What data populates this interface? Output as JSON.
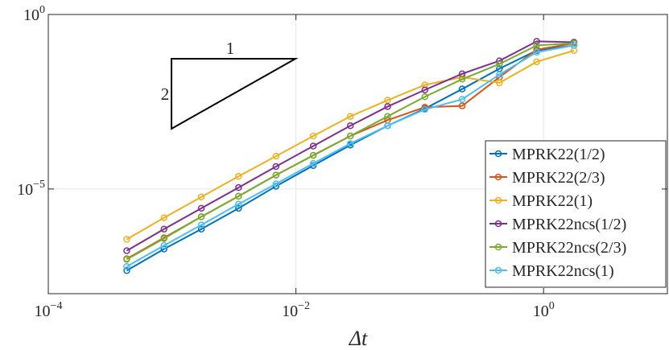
{
  "chart_data": {
    "type": "line",
    "xlabel": "Δt",
    "xscale": "log",
    "yscale": "log",
    "xlim": [
      0.0001,
      10
    ],
    "ylim": [
      1e-08,
      1
    ],
    "xticks": [
      {
        "value": 0.0001,
        "label": "10",
        "exponent": "−4"
      },
      {
        "value": 0.01,
        "label": "10",
        "exponent": "−2"
      },
      {
        "value": 1,
        "label": "10",
        "exponent": "0"
      }
    ],
    "yticks": [
      {
        "value": 1e-05,
        "label": "10",
        "exponent": "−5"
      },
      {
        "value": 1,
        "label": "10",
        "exponent": "0"
      }
    ],
    "grid": true,
    "legend": "southeast",
    "x": [
      0.00043,
      0.00086,
      0.00172,
      0.00344,
      0.0069,
      0.0138,
      0.0275,
      0.055,
      0.11,
      0.22,
      0.44,
      0.88,
      1.76
    ],
    "series": [
      {
        "name": "MPRK22(1/2)",
        "color": "#0072BD",
        "values": [
          4.6e-08,
          1.9e-07,
          7.1e-07,
          2.8e-06,
          1.2e-05,
          4.7e-05,
          0.00018,
          0.00065,
          0.002,
          0.0073,
          0.028,
          0.093,
          0.13
        ]
      },
      {
        "name": "MPRK22(2/3)",
        "color": "#D95319",
        "values": [
          1e-07,
          4e-07,
          1.6e-06,
          6.2e-06,
          2.5e-05,
          9.2e-05,
          0.00033,
          0.00094,
          0.0022,
          0.0024,
          0.016,
          0.098,
          0.15
        ]
      },
      {
        "name": "MPRK22(1)",
        "color": "#EDB120",
        "values": [
          3.6e-07,
          1.5e-06,
          5.9e-06,
          2.3e-05,
          8.7e-05,
          0.00033,
          0.0012,
          0.0035,
          0.0096,
          0.016,
          0.011,
          0.044,
          0.093
        ]
      },
      {
        "name": "MPRK22ncs(1/2)",
        "color": "#7E2F8E",
        "values": [
          1.7e-07,
          7.1e-07,
          2.8e-06,
          1.1e-05,
          4.4e-05,
          0.00017,
          0.00065,
          0.0023,
          0.0069,
          0.02,
          0.047,
          0.17,
          0.16
        ]
      },
      {
        "name": "MPRK22ncs(2/3)",
        "color": "#77AC30",
        "values": [
          9.6e-08,
          3.8e-07,
          1.6e-06,
          6.2e-06,
          2.5e-05,
          9.2e-05,
          0.00033,
          0.0012,
          0.0044,
          0.014,
          0.038,
          0.13,
          0.15
        ]
      },
      {
        "name": "MPRK22ncs(1)",
        "color": "#4DBEEE",
        "values": [
          6e-08,
          2.4e-07,
          9.3e-07,
          3.7e-06,
          1.4e-05,
          5.4e-05,
          0.0002,
          0.00065,
          0.0019,
          0.0037,
          0.019,
          0.083,
          0.13
        ]
      }
    ],
    "annotations": {
      "run_label": "1",
      "rise_label": "2"
    }
  }
}
